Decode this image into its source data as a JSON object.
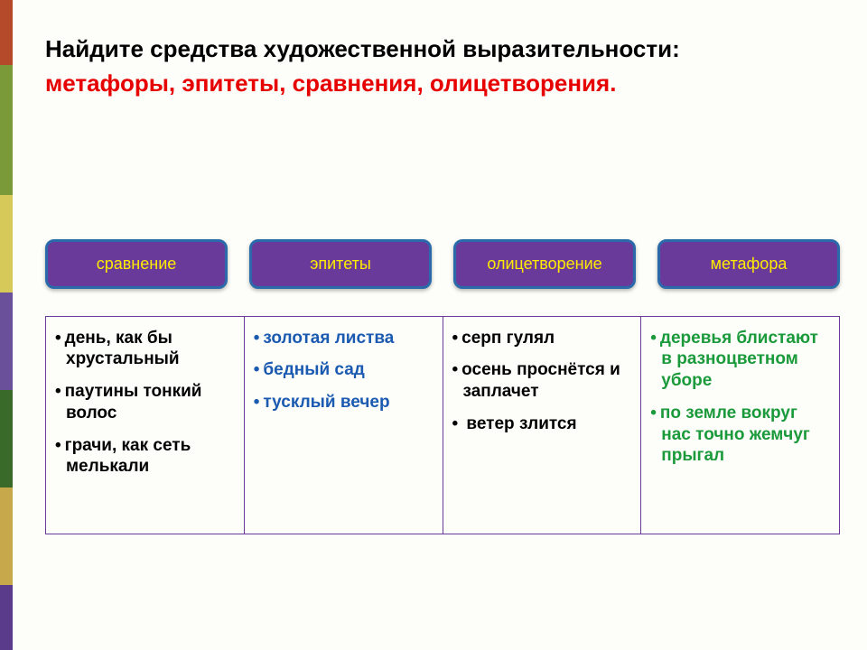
{
  "heading": {
    "line1": "Найдите средства художественной выразительности:",
    "line2": "метафоры, эпитеты, сравнения, олицетворения."
  },
  "pills": [
    {
      "label": "сравнение"
    },
    {
      "label": "эпитеты"
    },
    {
      "label": "олицетворение"
    },
    {
      "label": "метафора"
    }
  ],
  "columns": [
    {
      "color": "#000000",
      "items": [
        "день, как бы хрустальный",
        "паутины тонкий волос",
        "грачи, как сеть мелькали"
      ]
    },
    {
      "color": "#1a5ab0",
      "items": [
        "золотая листва",
        "бедный сад",
        "тусклый вечер"
      ]
    },
    {
      "color": "#000000",
      "items": [
        "серп гулял",
        "осень проснётся и заплачет",
        " ветер злится"
      ]
    },
    {
      "color": "#1a9a3a",
      "items": [
        "деревья блистают в разноцветном уборе",
        "по земле вокруг нас точно жемчуг прыгал"
      ]
    }
  ],
  "colors": {
    "pill_bg": "#6a3a9a",
    "pill_text": "#ffeb00",
    "pill_border": "#2a6aaa",
    "table_border": "#6a3a9a",
    "heading_accent": "#e60000"
  }
}
